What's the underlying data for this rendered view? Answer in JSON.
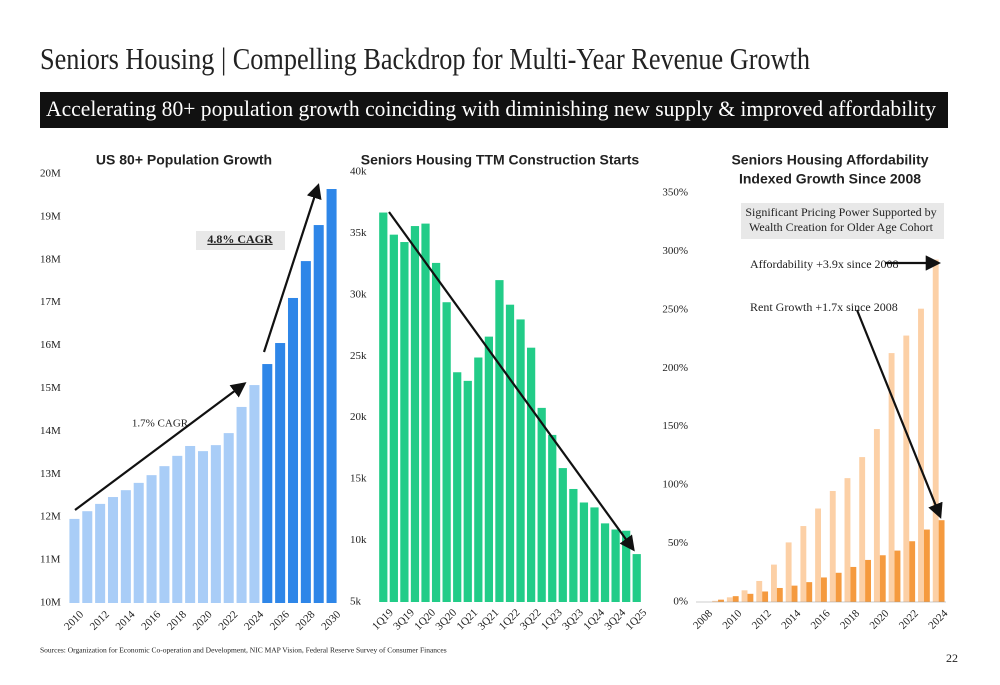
{
  "title": "Seniors Housing | Compelling Backdrop for Multi-Year Revenue Growth",
  "subtitle": "Accelerating 80+ population growth coinciding with diminishing new supply & improved affordability",
  "source": "Sources: Organization for Economic Co-operation and Development, NIC MAP Vision, Federal Reserve Survey of Consumer Finances",
  "page_number": "22",
  "chart_data": [
    {
      "type": "bar",
      "title": "US 80+ Population Growth",
      "categories": [
        "2010",
        null,
        "2012",
        null,
        "2014",
        null,
        "2016",
        null,
        "2018",
        null,
        "2020",
        null,
        "2022",
        null,
        "2024",
        null,
        "2026",
        null,
        "2028",
        null,
        "2030"
      ],
      "values": [
        11.96,
        12.14,
        12.31,
        12.47,
        12.63,
        12.8,
        12.98,
        13.19,
        13.43,
        13.66,
        13.54,
        13.68,
        13.96,
        14.57,
        15.08,
        15.57,
        16.06,
        17.11,
        17.97,
        18.81,
        19.65
      ],
      "colors": [
        "#a9cdf7",
        "#a9cdf7",
        "#a9cdf7",
        "#a9cdf7",
        "#a9cdf7",
        "#a9cdf7",
        "#a9cdf7",
        "#a9cdf7",
        "#a9cdf7",
        "#a9cdf7",
        "#a9cdf7",
        "#a9cdf7",
        "#a9cdf7",
        "#a9cdf7",
        "#a9cdf7",
        "#2e86e8",
        "#2e86e8",
        "#2e86e8",
        "#2e86e8",
        "#2e86e8",
        "#2e86e8"
      ],
      "ylim": [
        10,
        20
      ],
      "yticks": [
        {
          "value": 10,
          "label": "10M"
        },
        {
          "value": 11,
          "label": "11M"
        },
        {
          "value": 12,
          "label": "12M"
        },
        {
          "value": 13,
          "label": "13M"
        },
        {
          "value": 14,
          "label": "14M"
        },
        {
          "value": 15,
          "label": "15M"
        },
        {
          "value": 16,
          "label": "16M"
        },
        {
          "value": 17,
          "label": "17M"
        },
        {
          "value": 18,
          "label": "18M"
        },
        {
          "value": 19,
          "label": "19M"
        },
        {
          "value": 20,
          "label": "20M"
        }
      ],
      "annotations": [
        "4.8% CAGR",
        "1.7% CAGR"
      ]
    },
    {
      "type": "bar",
      "title": "Seniors Housing TTM Construction Starts",
      "categories": [
        "1Q19",
        null,
        "3Q19",
        null,
        "1Q20",
        null,
        "3Q20",
        null,
        "1Q21",
        null,
        "3Q21",
        null,
        "1Q22",
        null,
        "3Q22",
        null,
        "1Q23",
        null,
        "3Q23",
        null,
        "1Q24",
        null,
        "3Q24",
        null,
        "1Q25"
      ],
      "values": [
        36.7,
        34.9,
        34.3,
        35.6,
        35.8,
        32.6,
        29.4,
        23.7,
        23.0,
        24.9,
        26.6,
        31.2,
        29.2,
        28.0,
        25.7,
        20.8,
        18.6,
        15.9,
        14.2,
        13.1,
        12.7,
        11.4,
        10.9,
        10.8,
        8.9
      ],
      "color": "#22cc88",
      "ylim": [
        5,
        40
      ],
      "yticks": [
        {
          "value": 5,
          "label": "5k"
        },
        {
          "value": 10,
          "label": "10k"
        },
        {
          "value": 15,
          "label": "15k"
        },
        {
          "value": 20,
          "label": "20k"
        },
        {
          "value": 25,
          "label": "25k"
        },
        {
          "value": 30,
          "label": "30k"
        },
        {
          "value": 35,
          "label": "35k"
        },
        {
          "value": 40,
          "label": "40k"
        }
      ]
    },
    {
      "type": "grouped_bar",
      "title": "Seniors Housing Affordability",
      "subtitle": "Indexed Growth Since 2008",
      "categories": [
        "2008",
        null,
        "2010",
        null,
        "2012",
        null,
        "2014",
        null,
        "2016",
        null,
        "2018",
        null,
        "2020",
        null,
        "2022",
        null,
        "2024"
      ],
      "series": [
        {
          "name": "Affordability",
          "color": "#fcd0a6",
          "values": [
            0,
            1,
            4,
            10,
            18,
            32,
            51,
            65,
            80,
            95,
            106,
            124,
            148,
            213,
            228,
            251,
            293
          ]
        },
        {
          "name": "Rent Growth",
          "color": "#f59a3e",
          "values": [
            0,
            2,
            5,
            7,
            9,
            12,
            14,
            17,
            21,
            25,
            30,
            36,
            40,
            44,
            52,
            62,
            70
          ]
        }
      ],
      "ylim": [
        0,
        350
      ],
      "yticks": [
        {
          "value": 0,
          "label": "0%"
        },
        {
          "value": 50,
          "label": "50%"
        },
        {
          "value": 100,
          "label": "100%"
        },
        {
          "value": 150,
          "label": "150%"
        },
        {
          "value": 200,
          "label": "200%"
        },
        {
          "value": 250,
          "label": "250%"
        },
        {
          "value": 300,
          "label": "300%"
        },
        {
          "value": 350,
          "label": "350%"
        }
      ],
      "annotations": [
        "Significant Pricing Power Supported by",
        "Wealth Creation for Older Age Cohort",
        "Affordability +3.9x since 2008",
        "Rent Growth +1.7x since 2008"
      ]
    }
  ]
}
